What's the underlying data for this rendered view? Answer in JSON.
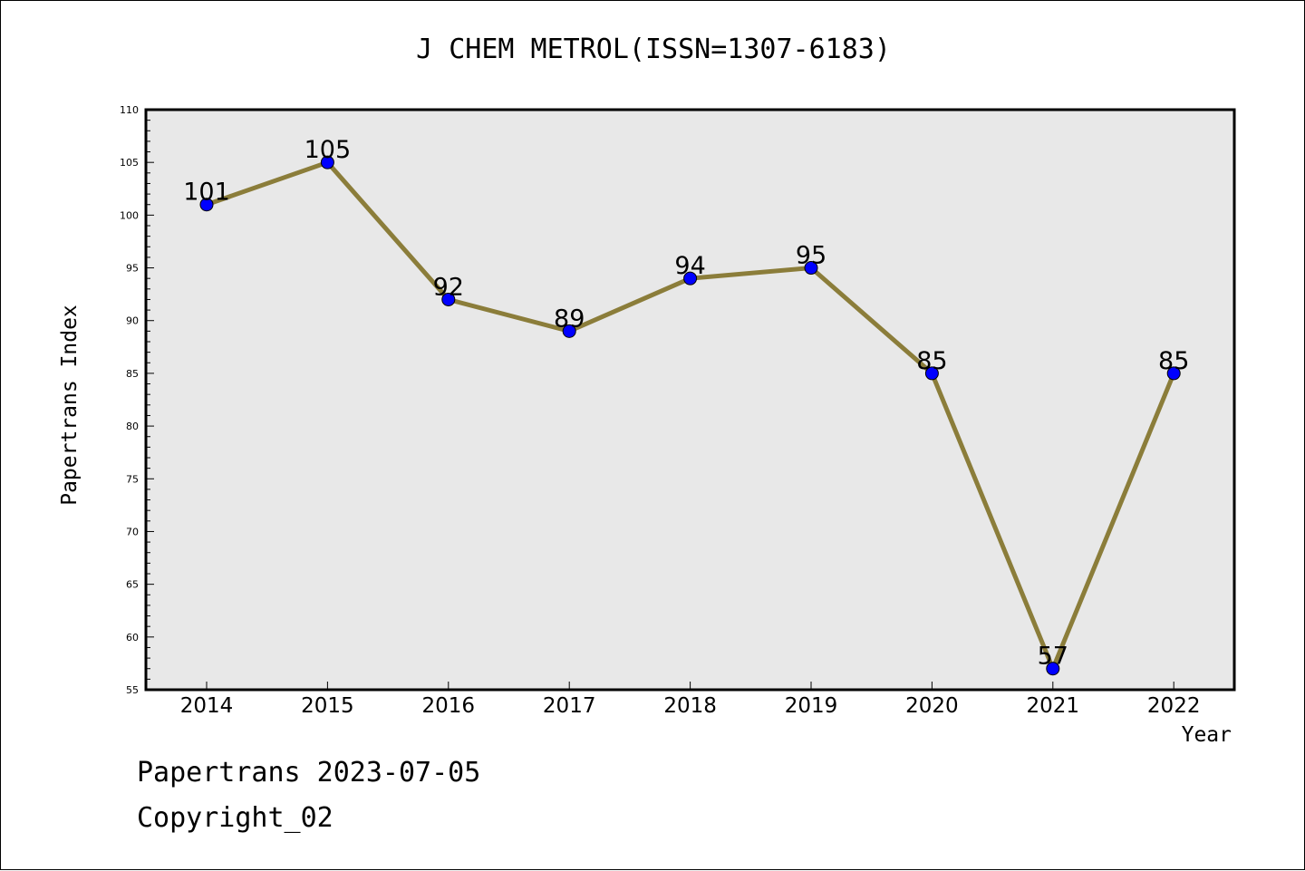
{
  "chart_data": {
    "type": "line",
    "title": "J CHEM METROL(ISSN=1307-6183)",
    "xlabel": "Year",
    "ylabel": "Papertrans Index",
    "categories": [
      "2014",
      "2015",
      "2016",
      "2017",
      "2018",
      "2019",
      "2020",
      "2021",
      "2022"
    ],
    "series": [
      {
        "values": [
          101,
          105,
          92,
          89,
          94,
          95,
          85,
          57,
          85
        ]
      }
    ],
    "ylim": [
      55,
      110
    ],
    "yticks": [
      "55",
      "60",
      "65",
      "70",
      "75",
      "80",
      "85",
      "90",
      "95",
      "100",
      "105",
      "110"
    ],
    "data_labels": [
      "101",
      "105",
      "92",
      "89",
      "94",
      "95",
      "85",
      "57",
      "85"
    ],
    "line_color": "#8B7D3A",
    "marker_color": "#0000FF",
    "plot_background": "#E8E8E8",
    "grid": false
  },
  "footer": {
    "date_text": "Papertrans 2023-07-05",
    "copyright_text": "Copyright_02"
  }
}
